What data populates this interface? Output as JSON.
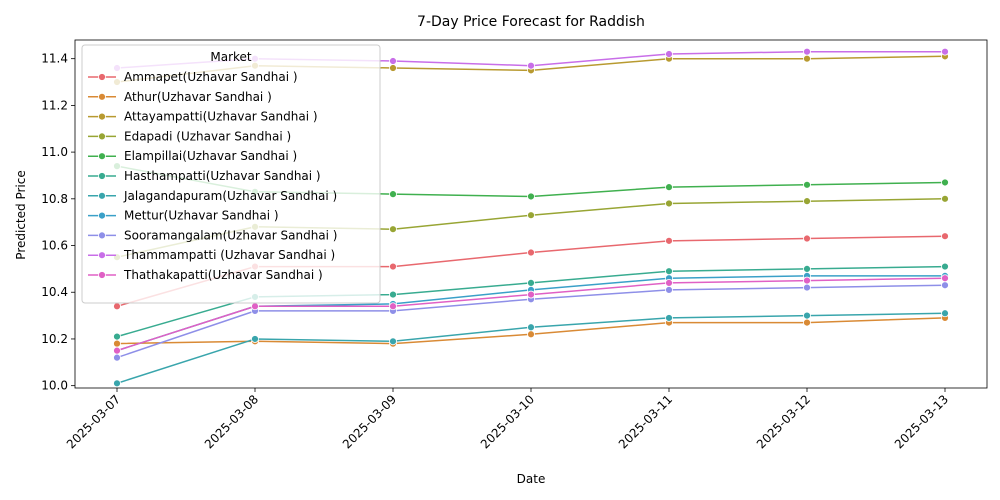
{
  "chart_data": {
    "type": "line",
    "title": "7-Day Price Forecast for Raddish",
    "xlabel": "Date",
    "ylabel": "Predicted Price",
    "x": [
      "2025-03-07",
      "2025-03-08",
      "2025-03-09",
      "2025-03-10",
      "2025-03-11",
      "2025-03-12",
      "2025-03-13"
    ],
    "ylim": [
      9.99,
      11.48
    ],
    "yticks": [
      "10.0",
      "10.2",
      "10.4",
      "10.6",
      "10.8",
      "11.0",
      "11.2",
      "11.4"
    ],
    "grid": false,
    "legend": {
      "title": "Market",
      "placement": "upper-left"
    },
    "series": [
      {
        "name": "Ammapet(Uzhavar Sandhai )",
        "color": "#e8686e",
        "values": [
          10.34,
          10.51,
          10.51,
          10.57,
          10.62,
          10.63,
          10.64
        ]
      },
      {
        "name": "Athur(Uzhavar Sandhai )",
        "color": "#d98a35",
        "values": [
          10.18,
          10.19,
          10.18,
          10.22,
          10.27,
          10.27,
          10.29
        ]
      },
      {
        "name": "Attayampatti(Uzhavar Sandhai )",
        "color": "#b89a30",
        "values": [
          11.3,
          11.37,
          11.36,
          11.35,
          11.4,
          11.4,
          11.41
        ]
      },
      {
        "name": "Edapadi (Uzhavar Sandhai )",
        "color": "#98a534",
        "values": [
          10.55,
          10.68,
          10.67,
          10.73,
          10.78,
          10.79,
          10.8
        ]
      },
      {
        "name": "Elampillai(Uzhavar Sandhai )",
        "color": "#40b04f",
        "values": [
          10.94,
          10.83,
          10.82,
          10.81,
          10.85,
          10.86,
          10.87
        ]
      },
      {
        "name": "Hasthampatti(Uzhavar Sandhai )",
        "color": "#38ab90",
        "values": [
          10.21,
          10.38,
          10.39,
          10.44,
          10.49,
          10.5,
          10.51
        ]
      },
      {
        "name": "Jalagandapuram(Uzhavar Sandhai )",
        "color": "#39a5ac",
        "values": [
          10.01,
          10.2,
          10.19,
          10.25,
          10.29,
          10.3,
          10.31
        ]
      },
      {
        "name": "Mettur(Uzhavar Sandhai )",
        "color": "#3aa0c8",
        "values": [
          10.15,
          10.34,
          10.35,
          10.41,
          10.46,
          10.47,
          10.47
        ]
      },
      {
        "name": "Sooramangalam(Uzhavar Sandhai )",
        "color": "#8e8fe8",
        "values": [
          10.12,
          10.32,
          10.32,
          10.37,
          10.41,
          10.42,
          10.43
        ]
      },
      {
        "name": "Thammampatti (Uzhavar Sandhai )",
        "color": "#c86ee8",
        "values": [
          11.36,
          11.4,
          11.39,
          11.37,
          11.42,
          11.43,
          11.43
        ]
      },
      {
        "name": "Thathakapatti(Uzhavar Sandhai )",
        "color": "#e060c5",
        "values": [
          10.15,
          10.34,
          10.34,
          10.39,
          10.44,
          10.45,
          10.46
        ]
      }
    ]
  }
}
